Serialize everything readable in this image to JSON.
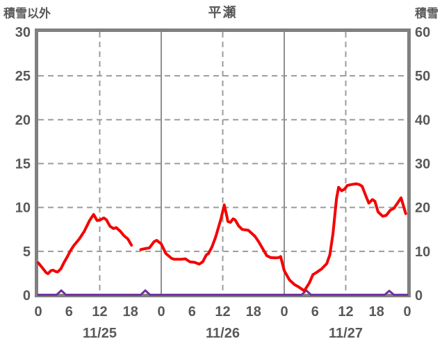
{
  "chart_data": {
    "type": "line",
    "title": "平瀬",
    "left_axis": {
      "label": "積雪以外",
      "min": 0,
      "max": 30,
      "tick_step": 5,
      "tick_labels": [
        "0",
        "5",
        "10",
        "15",
        "20",
        "25",
        "30"
      ]
    },
    "right_axis": {
      "label": "積雪",
      "min": 0,
      "max": 60,
      "tick_step": 10,
      "tick_labels": [
        "0",
        "10",
        "20",
        "30",
        "40",
        "50",
        "60"
      ]
    },
    "x_axis": {
      "total_hours": 72,
      "hour_tick_interval": 6,
      "hour_tick_labels": [
        "0",
        "6",
        "12",
        "18",
        "0",
        "6",
        "12",
        "18",
        "0",
        "6",
        "12",
        "18",
        "0"
      ],
      "day_labels": [
        "11/25",
        "11/26",
        "11/27"
      ],
      "day_label_center_hours": [
        12,
        36,
        60
      ],
      "solid_gridline_hours": [
        24,
        48
      ],
      "dashed_gridline_hours": [
        12,
        36,
        60
      ],
      "dashed_h_gridline_values": [
        5,
        10,
        15,
        20,
        25
      ]
    },
    "colors": {
      "red_series": "#f40000",
      "purple_series": "#7030a0",
      "border": "#808080",
      "gridline_dashed": "#9b9b9b",
      "gridline_solid": "#8f8f8f",
      "label_text": "#595959"
    },
    "series": [
      {
        "name": "積雪以外",
        "axis": "left",
        "color_key": "red_series",
        "stroke_width": 4,
        "note": "gap in data 11/25 18:00-20:00",
        "segments": [
          [
            [
              0,
              3.7
            ],
            [
              0.7,
              3.2
            ],
            [
              1.5,
              2.6
            ],
            [
              1.9,
              2.45
            ],
            [
              2.5,
              2.8
            ],
            [
              2.9,
              2.85
            ],
            [
              3.4,
              2.7
            ],
            [
              3.8,
              2.65
            ],
            [
              4.4,
              3.0
            ],
            [
              5,
              3.7
            ],
            [
              5.7,
              4.4
            ],
            [
              6.3,
              5.1
            ],
            [
              7,
              5.7
            ],
            [
              8,
              6.4
            ],
            [
              9,
              7.3
            ],
            [
              10,
              8.5
            ],
            [
              10.8,
              9.2
            ],
            [
              11.5,
              8.5
            ],
            [
              12.1,
              8.6
            ],
            [
              12.8,
              8.8
            ],
            [
              13.3,
              8.6
            ],
            [
              14,
              7.85
            ],
            [
              14.7,
              7.6
            ],
            [
              15.2,
              7.7
            ],
            [
              16,
              7.3
            ],
            [
              16.7,
              6.8
            ],
            [
              17.5,
              6.4
            ],
            [
              18.2,
              5.7
            ]
          ],
          [
            [
              20,
              5.2
            ],
            [
              20.8,
              5.3
            ],
            [
              21.7,
              5.4
            ],
            [
              22.6,
              6.1
            ],
            [
              23.1,
              6.25
            ],
            [
              24,
              5.85
            ],
            [
              24.9,
              4.75
            ],
            [
              26,
              4.2
            ],
            [
              26.5,
              4.1
            ],
            [
              28,
              4.1
            ],
            [
              28.7,
              4.15
            ],
            [
              29.6,
              3.8
            ],
            [
              30.5,
              3.75
            ],
            [
              31.4,
              3.55
            ],
            [
              32.1,
              3.8
            ],
            [
              32.8,
              4.6
            ],
            [
              33.2,
              4.75
            ],
            [
              33.9,
              5.5
            ],
            [
              34.6,
              6.6
            ],
            [
              35.2,
              7.8
            ],
            [
              35.7,
              8.8
            ],
            [
              36.3,
              10.3
            ],
            [
              36.8,
              9.0
            ],
            [
              37,
              8.4
            ],
            [
              37.5,
              8.3
            ],
            [
              38,
              8.7
            ],
            [
              38.4,
              8.6
            ],
            [
              39.1,
              7.9
            ],
            [
              39.8,
              7.5
            ],
            [
              41,
              7.4
            ],
            [
              42.3,
              6.7
            ],
            [
              43,
              6.1
            ],
            [
              44.6,
              4.5
            ],
            [
              45.3,
              4.3
            ],
            [
              46.3,
              4.25
            ],
            [
              47,
              4.3
            ],
            [
              47.3,
              4.4
            ],
            [
              48,
              2.8
            ],
            [
              49,
              1.75
            ],
            [
              50,
              1.2
            ],
            [
              50.8,
              0.95
            ],
            [
              51.9,
              0.5
            ],
            [
              52.9,
              1.4
            ],
            [
              53.6,
              2.35
            ],
            [
              54.3,
              2.6
            ],
            [
              55.3,
              3.0
            ],
            [
              56.3,
              3.6
            ],
            [
              56.9,
              4.6
            ],
            [
              57.5,
              7.0
            ],
            [
              58.2,
              11.0
            ],
            [
              58.6,
              12.3
            ],
            [
              59.2,
              11.9
            ],
            [
              59.8,
              12.1
            ],
            [
              60.3,
              12.5
            ],
            [
              61,
              12.6
            ],
            [
              62,
              12.7
            ],
            [
              62.7,
              12.6
            ],
            [
              63.2,
              12.4
            ],
            [
              64,
              11.2
            ],
            [
              64.5,
              10.5
            ],
            [
              65.2,
              10.9
            ],
            [
              65.7,
              10.7
            ],
            [
              66.3,
              9.5
            ],
            [
              67.2,
              9.0
            ],
            [
              67.9,
              9.1
            ],
            [
              68.7,
              9.7
            ],
            [
              69.4,
              9.9
            ],
            [
              70.1,
              10.5
            ],
            [
              70.8,
              11.1
            ],
            [
              71.7,
              9.3
            ]
          ]
        ]
      },
      {
        "name": "積雪",
        "axis": "right",
        "color_key": "purple_series",
        "stroke_width": 3,
        "segments": [
          [
            [
              0,
              0.1
            ],
            [
              3.6,
              0.1
            ],
            [
              4.5,
              1.1
            ],
            [
              5.4,
              0.1
            ],
            [
              20,
              0.1
            ],
            [
              20.9,
              1.1
            ],
            [
              21.8,
              0.1
            ],
            [
              51.4,
              0.1
            ],
            [
              52.3,
              1.1
            ],
            [
              53.2,
              0.1
            ],
            [
              67.6,
              0.1
            ],
            [
              68.5,
              1.0
            ],
            [
              69.4,
              0.1
            ],
            [
              72,
              0.1
            ]
          ]
        ]
      }
    ]
  }
}
